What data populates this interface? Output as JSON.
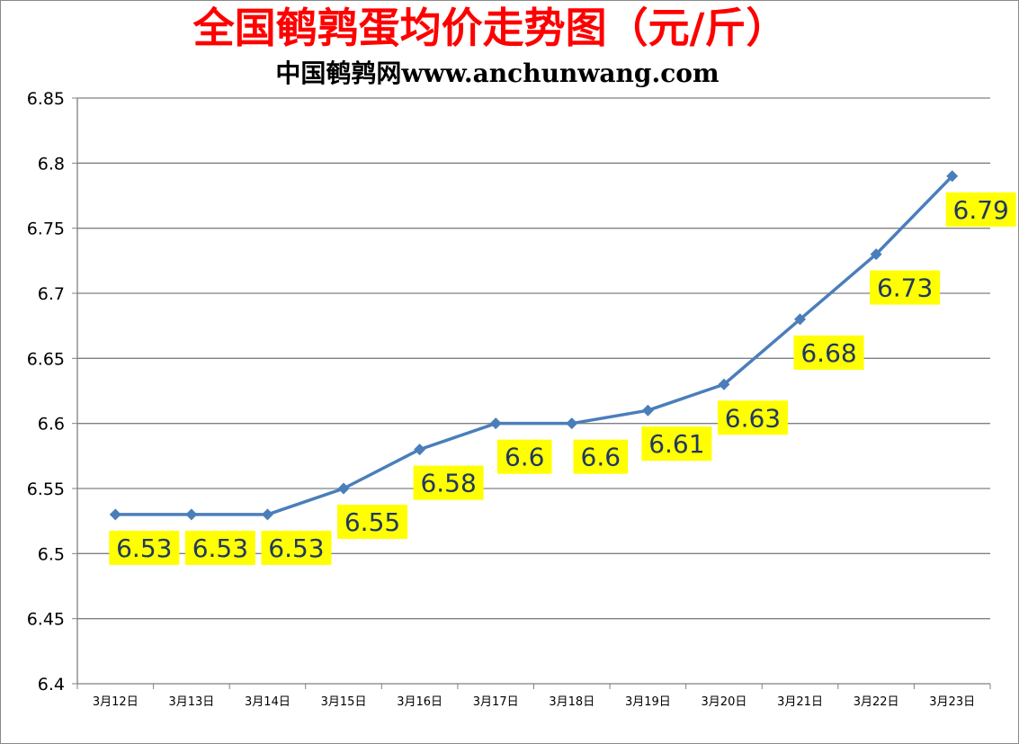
{
  "chart_data": {
    "type": "line",
    "title": "全国鹌鹑蛋均价走势图（元/斤）",
    "subtitle": "中国鹌鹑网www.anchunwang.com",
    "xlabel": "",
    "ylabel": "",
    "categories": [
      "3月12日",
      "3月13日",
      "3月14日",
      "3月15日",
      "3月16日",
      "3月17日",
      "3月18日",
      "3月19日",
      "3月20日",
      "3月21日",
      "3月22日",
      "3月23日"
    ],
    "series": [
      {
        "values": [
          6.53,
          6.53,
          6.53,
          6.55,
          6.58,
          6.6,
          6.6,
          6.61,
          6.63,
          6.68,
          6.73,
          6.79
        ]
      }
    ],
    "data_labels": [
      "6.53",
      "6.53",
      "6.53",
      "6.55",
      "6.58",
      "6.6",
      "6.6",
      "6.61",
      "6.63",
      "6.68",
      "6.73",
      "6.79"
    ],
    "ylim": [
      6.4,
      6.85
    ],
    "yticks": [
      "6.4",
      "6.45",
      "6.5",
      "6.55",
      "6.6",
      "6.65",
      "6.7",
      "6.75",
      "6.8",
      "6.85"
    ],
    "grid": true,
    "legend": "none",
    "colors": {
      "line": "#4a7ebb",
      "marker": "#4a7ebb",
      "label_bg": "#ffff00",
      "label_text": "#1f3864",
      "gridline": "#808080",
      "title": "#ff0000"
    }
  }
}
